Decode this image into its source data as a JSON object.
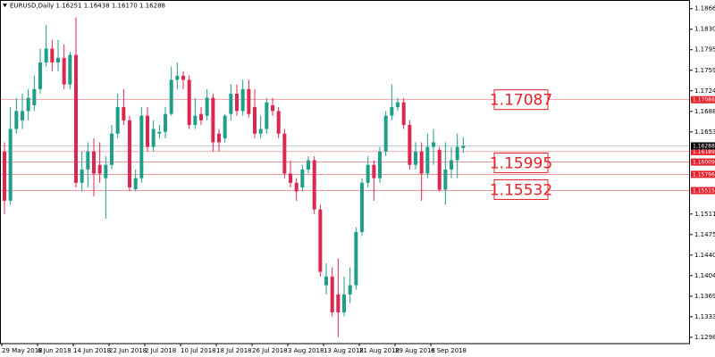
{
  "chart_data": {
    "type": "candlestick",
    "title": "EURUSD,Daily  1.16251 1.16438 1.16170 1.16288",
    "categories": [
      "29 May 2018",
      null,
      null,
      null,
      null,
      null,
      "6 Jun 2018",
      null,
      null,
      null,
      null,
      null,
      "14 Jun 2018",
      null,
      null,
      null,
      null,
      null,
      "22 Jun 2018",
      null,
      null,
      null,
      null,
      null,
      "2 Jul 2018",
      null,
      null,
      null,
      null,
      null,
      "10 Jul 2018",
      null,
      null,
      null,
      null,
      null,
      "18 Jul 2018",
      null,
      null,
      null,
      null,
      null,
      "26 Jul 2018",
      null,
      null,
      null,
      null,
      null,
      "3 Aug 2018",
      null,
      null,
      null,
      null,
      null,
      "13 Aug 2018",
      null,
      null,
      null,
      null,
      null,
      "21 Aug 2018",
      null,
      null,
      null,
      null,
      null,
      "29 Aug 2018",
      null,
      null,
      null,
      null,
      null,
      "6 Sep 2018",
      null,
      null,
      null,
      null,
      null
    ],
    "open": [
      1.1619,
      1.1534,
      1.1658,
      1.1673,
      1.1689,
      1.1699,
      1.1727,
      1.1773,
      1.1797,
      1.1773,
      1.1781,
      1.1735,
      1.1786,
      1.1565,
      1.1588,
      1.1619,
      1.1596,
      1.1573,
      1.1596,
      1.165,
      1.1696,
      1.1673,
      1.1554,
      1.1573,
      1.1681,
      1.1627,
      1.165,
      1.1653,
      1.1684,
      1.1743,
      1.175,
      1.1743,
      1.1665,
      1.1684,
      1.1681,
      1.1712,
      1.165,
      1.1642,
      1.1684,
      1.1719,
      1.1689,
      1.1727,
      1.1696,
      1.165,
      1.1658,
      1.1699,
      1.1689,
      1.165,
      1.1581,
      1.1565,
      1.1557,
      1.1588,
      1.1604,
      1.1519,
      1.1388,
      1.1403,
      1.1372,
      1.1341,
      1.1372,
      1.1388,
      1.148,
      1.1565,
      1.1596,
      1.1573,
      1.1619,
      1.1681,
      1.1696,
      1.1704,
      1.1665,
      1.1596,
      1.1619,
      1.1581,
      1.1627,
      1.1622,
      1.1553,
      1.1588,
      1.1604,
      1.16251
    ],
    "high": [
      1.1635,
      1.1696,
      1.1712,
      1.1719,
      1.1727,
      1.175,
      1.1797,
      1.1838,
      1.1812,
      1.1812,
      1.1804,
      1.1792,
      1.1851,
      1.1619,
      1.1635,
      1.1642,
      1.1635,
      1.1611,
      1.1665,
      1.1719,
      1.1727,
      1.1681,
      1.1588,
      1.1696,
      1.1696,
      1.1673,
      1.1665,
      1.1696,
      1.1766,
      1.1773,
      1.1758,
      1.175,
      1.1712,
      1.1696,
      1.1727,
      1.1719,
      1.1658,
      1.1684,
      1.1735,
      1.1735,
      1.1743,
      1.1743,
      1.1727,
      1.1681,
      1.1712,
      1.1712,
      1.1696,
      1.1658,
      1.1604,
      1.1573,
      1.1596,
      1.1611,
      1.1611,
      1.1527,
      1.1426,
      1.1419,
      1.1434,
      1.1403,
      1.1419,
      1.1488,
      1.1573,
      1.1611,
      1.1604,
      1.1627,
      1.1689,
      1.1735,
      1.1712,
      1.1712,
      1.1673,
      1.1635,
      1.1635,
      1.165,
      1.1658,
      1.1627,
      1.1635,
      1.1627,
      1.165,
      1.16438
    ],
    "low": [
      1.1511,
      1.1527,
      1.165,
      1.1658,
      1.1673,
      1.1689,
      1.1719,
      1.1766,
      1.1758,
      1.1758,
      1.1727,
      1.1727,
      1.1557,
      1.155,
      1.1557,
      1.1542,
      1.1565,
      1.1503,
      1.1588,
      1.1642,
      1.1665,
      1.155,
      1.155,
      1.1565,
      1.1619,
      1.1619,
      1.1642,
      1.1642,
      1.1681,
      1.1727,
      1.1727,
      1.1658,
      1.1658,
      1.1665,
      1.1673,
      1.1619,
      1.1619,
      1.1635,
      1.1673,
      1.1681,
      1.1681,
      1.1678,
      1.1642,
      1.1642,
      1.165,
      1.1681,
      1.1642,
      1.1573,
      1.1557,
      1.1534,
      1.155,
      1.1581,
      1.1511,
      1.1403,
      1.1372,
      1.1334,
      1.1298,
      1.1334,
      1.1357,
      1.138,
      1.1473,
      1.1557,
      1.1534,
      1.1565,
      1.1611,
      1.1673,
      1.1689,
      1.1658,
      1.1588,
      1.1588,
      1.1534,
      1.1573,
      1.1596,
      1.155,
      1.1527,
      1.1573,
      1.1573,
      1.1617
    ],
    "close": [
      1.1534,
      1.1658,
      1.1689,
      1.1689,
      1.1712,
      1.1727,
      1.1773,
      1.1797,
      1.1773,
      1.1781,
      1.1735,
      1.1786,
      1.1565,
      1.1588,
      1.1619,
      1.1581,
      1.1581,
      1.1596,
      1.165,
      1.1696,
      1.1673,
      1.1557,
      1.1573,
      1.1681,
      1.1627,
      1.1658,
      1.1653,
      1.1684,
      1.1743,
      1.175,
      1.1743,
      1.1665,
      1.1681,
      1.1673,
      1.1712,
      1.1635,
      1.1635,
      1.1681,
      1.1719,
      1.1689,
      1.1727,
      1.1684,
      1.165,
      1.1658,
      1.1704,
      1.1689,
      1.165,
      1.1581,
      1.1565,
      1.155,
      1.1588,
      1.1604,
      1.1519,
      1.1411,
      1.1403,
      1.1341,
      1.1341,
      1.1372,
      1.1388,
      1.148,
      1.1565,
      1.1596,
      1.1573,
      1.1619,
      1.1681,
      1.1696,
      1.1704,
      1.1665,
      1.1596,
      1.1619,
      1.1581,
      1.1627,
      1.1635,
      1.1553,
      1.1588,
      1.1604,
      1.1627,
      1.16288
    ],
    "up_color": "#1f9e89",
    "down_color": "#dc2850",
    "ylim": [
      1.1287,
      1.1881
    ],
    "yticks": [
      {
        "value": 1.1866,
        "label": "1.18660"
      },
      {
        "value": 1.18305,
        "label": "1.18305"
      },
      {
        "value": 1.1795,
        "label": "1.17950"
      },
      {
        "value": 1.17595,
        "label": "1.17595"
      },
      {
        "value": 1.1724,
        "label": "1.17240"
      },
      {
        "value": 1.16885,
        "label": "1.16885"
      },
      {
        "value": 1.1653,
        "label": "1.16530"
      },
      {
        "value": 1.1511,
        "label": "1.15110"
      },
      {
        "value": 1.14755,
        "label": "1.14755"
      },
      {
        "value": 1.144,
        "label": "1.14400"
      },
      {
        "value": 1.14045,
        "label": "1.14045"
      },
      {
        "value": 1.1369,
        "label": "1.13690"
      },
      {
        "value": 1.13335,
        "label": "1.13335"
      },
      {
        "value": 1.1298,
        "label": "1.12980"
      }
    ],
    "grid": false,
    "levels": [
      1.17086,
      1.16189,
      1.16009,
      1.15796,
      1.15515
    ],
    "level_color": "#e5202a",
    "last_price": 1.16288,
    "annotations": [
      1.17087,
      1.15995,
      1.15532
    ]
  }
}
